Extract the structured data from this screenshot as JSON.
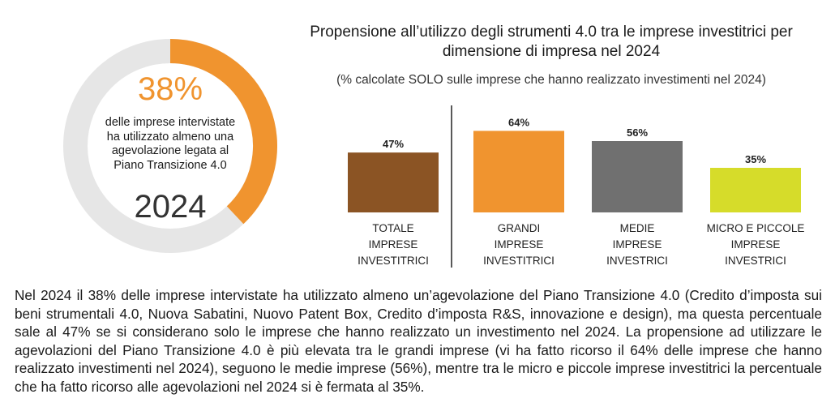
{
  "donut": {
    "percent_label": "38%",
    "description": "delle imprese intervistate ha utilizzato almeno una agevolazione legata al Piano Transizione 4.0",
    "year": "2024",
    "value": 0.38,
    "color_fill": "#f0942f",
    "color_track": "#e6e6e6"
  },
  "chart_data": {
    "type": "bar",
    "title": "Propensione all’utilizzo degli strumenti 4.0 tra le imprese investitrici per dimensione di impresa nel 2024",
    "subtitle": "(% calcolate SOLO sulle imprese che hanno realizzato investimenti nel 2024)",
    "categories": [
      [
        "TOTALE",
        "IMPRESE",
        "INVESTITRICI"
      ],
      [
        "GRANDI",
        "IMPRESE",
        "INVESTITRICI"
      ],
      [
        "MEDIE",
        "IMPRESE",
        "INVESTRICI"
      ],
      [
        "MICRO E PICCOLE",
        "IMPRESE",
        "INVESTRICI"
      ]
    ],
    "values": [
      47,
      64,
      56,
      35
    ],
    "value_labels": [
      "47%",
      "64%",
      "56%",
      "35%"
    ],
    "colors": [
      "#8b5424",
      "#f0942f",
      "#707070",
      "#d6dc2a"
    ],
    "ylim": [
      0,
      70
    ],
    "grid": false
  },
  "paragraph": "Nel 2024 il 38% delle imprese intervistate ha utilizzato almeno un’agevolazione del Piano Transizione 4.0 (Credito d’imposta sui beni strumentali 4.0, Nuova Sabatini, Nuovo Patent Box, Credito d’imposta R&S, innovazione e design), ma questa percentuale sale al 47% se si considerano solo le imprese che hanno realizzato un investimento nel 2024. La propensione ad utilizzare le agevolazioni del Piano Transizione 4.0 è più elevata tra le grandi imprese (vi ha fatto ricorso il 64% delle imprese che hanno realizzato investimenti nel 2024), seguono le medie imprese (56%), mentre tra le micro e piccole imprese investitrici la percentuale che ha fatto ricorso alle agevolazioni nel 2024 si è fermata al 35%."
}
